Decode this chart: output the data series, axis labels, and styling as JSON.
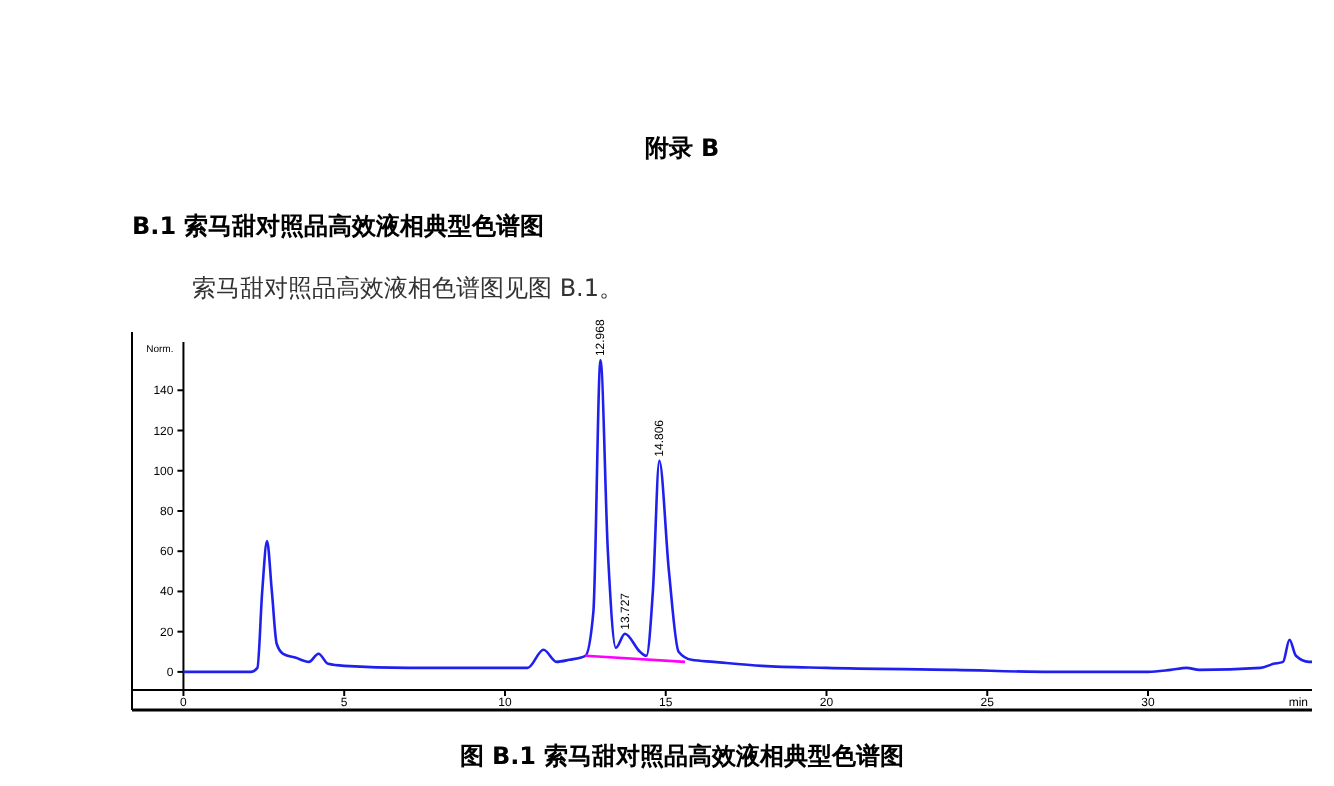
{
  "chart_data": {
    "type": "line",
    "title": "附录 B",
    "subtitle": "B.1  索马甜对照品高效液相典型色谱图",
    "xlabel": "min",
    "ylabel": "Norm.",
    "annotations": [
      "索马甜对照品高效液相色谱图见图 B.1。",
      "图  B.1  索马甜对照品高效液相典型色谱图",
      {
        "text": "12.968",
        "x": 12.968,
        "y": 155
      },
      {
        "text": "13.727",
        "x": 13.727,
        "y": 19
      },
      {
        "text": "14.806",
        "x": 14.806,
        "y": 105
      }
    ],
    "xlim": [
      -1.6,
      35.1
    ],
    "xticks": [
      0,
      5,
      10,
      15,
      20,
      25,
      30
    ],
    "ylim": [
      -9,
      164
    ],
    "yticks": [
      0,
      20,
      40,
      60,
      80,
      100,
      120,
      140
    ],
    "grid": false,
    "series": [
      {
        "color": "#2020ee",
        "x": [
          0,
          2.1,
          2.3,
          2.45,
          2.6,
          2.75,
          2.9,
          3.1,
          3.5,
          3.9,
          4.2,
          4.5,
          5,
          7,
          8,
          10,
          10.3,
          10.7,
          11.2,
          11.6,
          12,
          12.5,
          12.75,
          12.97,
          13.2,
          13.45,
          13.73,
          14.2,
          14.4,
          14.6,
          14.8,
          15.1,
          15.4,
          15.8,
          16.5,
          18,
          20,
          24,
          27,
          30,
          30.7,
          31.2,
          31.6,
          33.5,
          33.9,
          34.2,
          34.4,
          34.6,
          35,
          35.1
        ],
        "values": [
          0,
          0,
          2,
          40,
          65,
          40,
          14,
          9,
          7,
          5,
          9,
          4,
          3,
          2,
          2,
          2,
          2,
          2,
          11,
          5,
          6,
          8,
          30,
          155,
          60,
          12,
          19,
          10,
          8,
          40,
          105,
          50,
          10,
          6,
          5,
          3,
          2,
          1,
          0,
          0,
          1,
          2,
          1,
          2,
          4,
          5,
          16,
          8,
          5,
          5
        ]
      },
      {
        "color": "#ff00ff",
        "x": [
          12.5,
          15.6
        ],
        "values": [
          8,
          5
        ]
      }
    ]
  }
}
